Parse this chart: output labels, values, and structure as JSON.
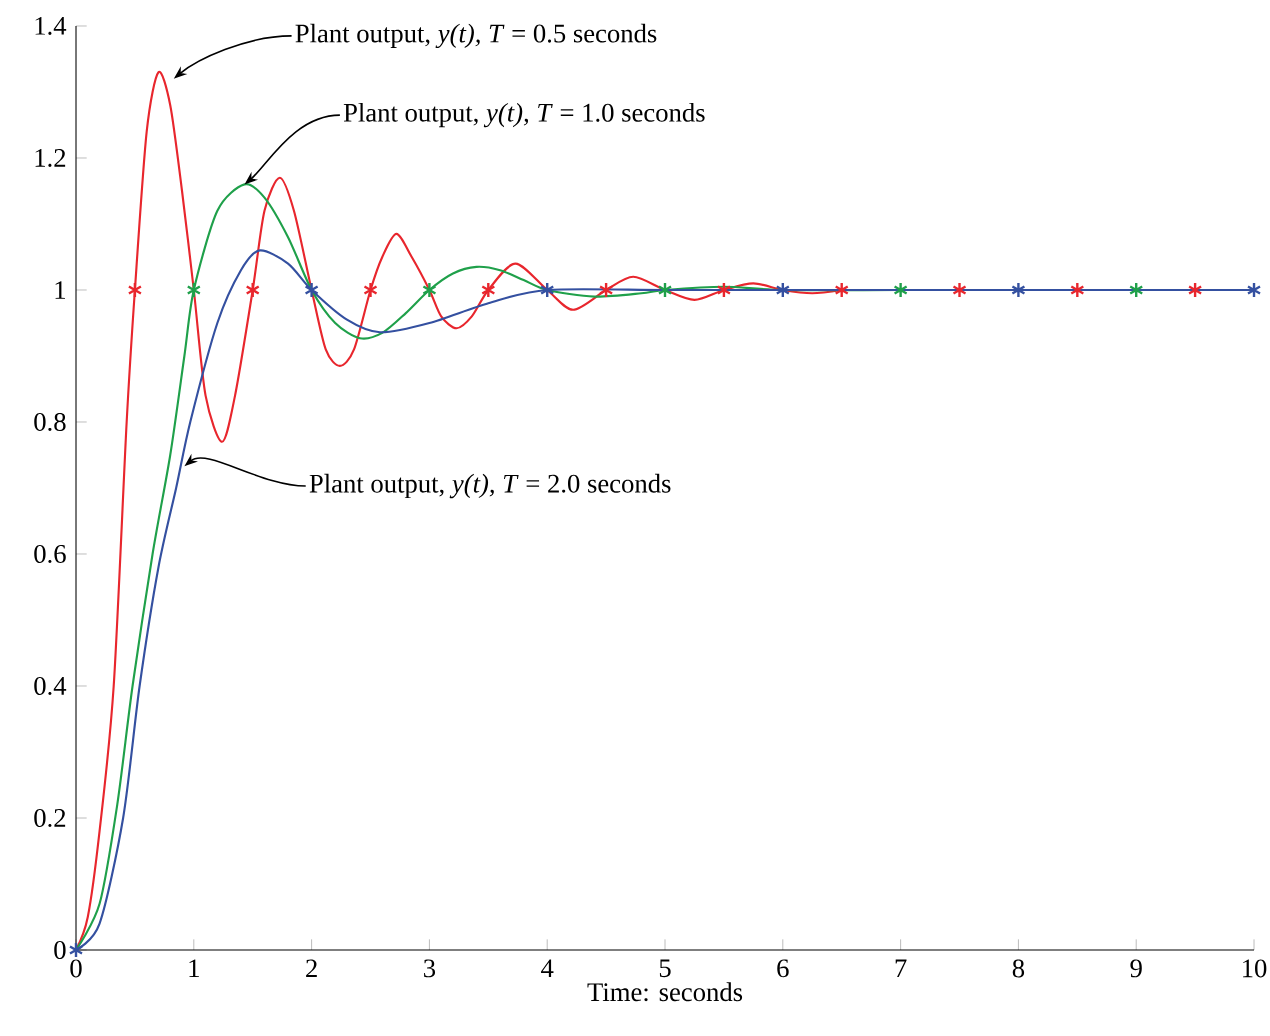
{
  "chart_data": {
    "type": "line",
    "xlabel": "Time: seconds",
    "xlim": [
      0,
      10
    ],
    "ylim": [
      0,
      1.4
    ],
    "xticks": [
      0,
      1,
      2,
      3,
      4,
      5,
      6,
      7,
      8,
      9,
      10
    ],
    "yticks": [
      0,
      0.2,
      0.4,
      0.6,
      0.8,
      1,
      1.2,
      1.4
    ],
    "grid": false,
    "marker": "none",
    "line_style": "solid",
    "series": [
      {
        "color": "#e8262d",
        "x": [
          0,
          0.1,
          0.2,
          0.32,
          0.43,
          0.5,
          0.6,
          0.7,
          0.8,
          0.9,
          1.0,
          1.1,
          1.24,
          1.35,
          1.5,
          1.6,
          1.73,
          1.85,
          2.0,
          2.12,
          2.24,
          2.36,
          2.5,
          2.6,
          2.72,
          2.85,
          3.0,
          3.1,
          3.23,
          3.36,
          3.5,
          3.73,
          4.0,
          4.22,
          4.5,
          4.73,
          5.0,
          5.25,
          5.5,
          5.75,
          6.0,
          6.25,
          6.5
        ],
        "values": [
          0,
          0.05,
          0.18,
          0.4,
          0.8,
          1.0,
          1.24,
          1.33,
          1.28,
          1.15,
          1.0,
          0.84,
          0.77,
          0.84,
          1.0,
          1.12,
          1.17,
          1.12,
          1.0,
          0.91,
          0.885,
          0.91,
          1.0,
          1.05,
          1.085,
          1.05,
          1.0,
          0.96,
          0.942,
          0.96,
          1.0,
          1.04,
          1.0,
          0.97,
          1.0,
          1.02,
          1.0,
          0.985,
          1.0,
          1.01,
          1.0,
          0.995,
          1.0
        ]
      },
      {
        "color": "#1fa04a",
        "x": [
          0,
          0.2,
          0.35,
          0.48,
          0.65,
          0.8,
          0.92,
          1.0,
          1.2,
          1.43,
          1.6,
          1.8,
          2.0,
          2.2,
          2.41,
          2.6,
          2.8,
          3.0,
          3.2,
          3.4,
          3.6,
          3.8,
          4.0,
          4.4,
          4.8,
          5.0,
          5.5,
          6,
          7,
          8,
          9,
          10
        ],
        "values": [
          0,
          0.07,
          0.22,
          0.4,
          0.6,
          0.75,
          0.9,
          1.0,
          1.12,
          1.16,
          1.14,
          1.08,
          1.0,
          0.95,
          0.927,
          0.935,
          0.965,
          1.0,
          1.025,
          1.035,
          1.03,
          1.015,
          1.0,
          0.99,
          0.995,
          1.0,
          1.005,
          1.0,
          1.0,
          1.0,
          1.0,
          1.0
        ]
      },
      {
        "color": "#3450a0",
        "x": [
          0,
          0.2,
          0.4,
          0.54,
          0.7,
          0.85,
          0.97,
          1.2,
          1.4,
          1.56,
          1.8,
          2.0,
          2.3,
          2.58,
          3.0,
          3.5,
          4.0,
          5,
          6,
          7,
          8,
          9,
          10
        ],
        "values": [
          0,
          0.04,
          0.2,
          0.4,
          0.58,
          0.7,
          0.8,
          0.95,
          1.03,
          1.06,
          1.04,
          1.0,
          0.955,
          0.936,
          0.95,
          0.98,
          1.0,
          1.0,
          1.0,
          1.0,
          1.0,
          1.0,
          1.0
        ]
      },
      {
        "type": "scatter",
        "marker": "cross",
        "color": "#e8262d",
        "x": [
          0.5,
          1.5,
          2.5,
          3.5,
          4.5,
          5.5,
          6.5,
          7.5,
          8.5,
          9.5
        ],
        "values": [
          1,
          1,
          1,
          1,
          1,
          1,
          1,
          1,
          1,
          1
        ]
      },
      {
        "type": "scatter",
        "marker": "cross",
        "color": "#1fa04a",
        "x": [
          1,
          3,
          5,
          7,
          9
        ],
        "values": [
          1,
          1,
          1,
          1,
          1
        ]
      },
      {
        "type": "scatter",
        "marker": "cross",
        "color": "#3450a0",
        "x": [
          0,
          2,
          4,
          6,
          8,
          10
        ],
        "values": [
          0,
          1,
          1,
          1,
          1,
          1
        ]
      }
    ],
    "annotations": [
      {
        "text": "Plant output, *y(t),*  *T* = 0.5 seconds",
        "x": 0.83,
        "y": 1.32
      },
      {
        "text": "Plant output, *y(t),*  *T* = 1.0 seconds",
        "x": 1.43,
        "y": 1.16
      },
      {
        "text": "Plant output, *y(t),*  *T* = 2.0 seconds",
        "x": 0.92,
        "y": 0.733
      }
    ]
  }
}
